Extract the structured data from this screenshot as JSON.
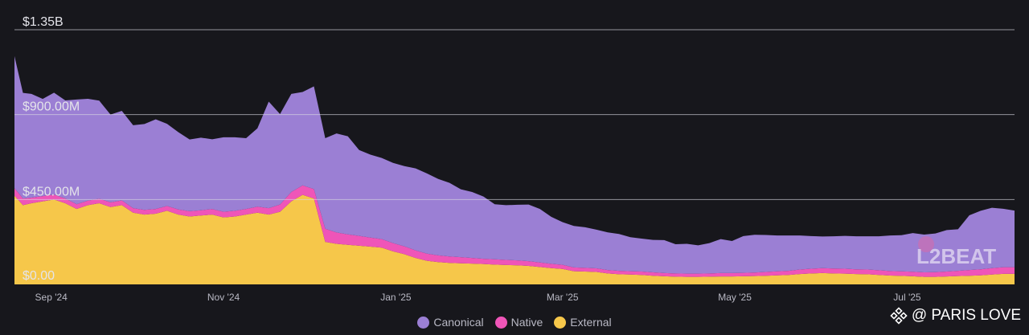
{
  "chart_data": {
    "type": "area",
    "stacked": true,
    "y_ticks": [
      "$1.35B",
      "$900.00M",
      "$450.00M",
      "$0.00"
    ],
    "y_tick_values": [
      1350,
      900,
      450,
      0
    ],
    "y_unit": "USD millions",
    "ylim": [
      0,
      1350
    ],
    "x_ticks": [
      "Sep '24",
      "Nov '24",
      "Jan '25",
      "Mar '25",
      "May '25",
      "Jul '25"
    ],
    "x_tick_days": [
      13,
      74,
      135,
      194,
      255,
      316
    ],
    "x_range_days": [
      0,
      354
    ],
    "grid": true,
    "legend_position": "bottom-center",
    "series": [
      {
        "name": "External",
        "color": "#f6c74a",
        "x": [
          0,
          3,
          6,
          10,
          14,
          18,
          22,
          26,
          30,
          34,
          38,
          42,
          46,
          50,
          54,
          58,
          62,
          66,
          70,
          74,
          78,
          82,
          86,
          90,
          94,
          98,
          102,
          106,
          110,
          114,
          118,
          122,
          126,
          130,
          134,
          138,
          142,
          146,
          150,
          154,
          158,
          162,
          166,
          170,
          174,
          178,
          182,
          186,
          190,
          194,
          198,
          202,
          206,
          210,
          214,
          218,
          222,
          226,
          230,
          234,
          238,
          242,
          246,
          250,
          254,
          258,
          262,
          266,
          270,
          274,
          278,
          282,
          286,
          290,
          294,
          298,
          302,
          306,
          310,
          314,
          318,
          322,
          326,
          330,
          334,
          338,
          342,
          346,
          350,
          354
        ],
        "values": [
          470,
          420,
          430,
          440,
          450,
          430,
          400,
          420,
          430,
          410,
          420,
          380,
          370,
          375,
          390,
          370,
          360,
          365,
          370,
          355,
          360,
          370,
          380,
          370,
          385,
          440,
          475,
          455,
          225,
          215,
          210,
          205,
          200,
          195,
          175,
          160,
          140,
          125,
          118,
          114,
          112,
          110,
          108,
          105,
          103,
          101,
          98,
          92,
          86,
          82,
          70,
          68,
          66,
          58,
          54,
          52,
          50,
          46,
          43,
          41,
          40,
          40,
          41,
          42,
          42,
          43,
          44,
          46,
          48,
          50,
          55,
          58,
          60,
          58,
          57,
          55,
          54,
          50,
          47,
          45,
          43,
          40,
          40,
          42,
          44,
          46,
          48,
          52,
          56,
          56
        ]
      },
      {
        "name": "Native",
        "color": "#ef55b8",
        "x": [
          0,
          3,
          6,
          10,
          14,
          18,
          22,
          26,
          30,
          34,
          38,
          42,
          46,
          50,
          54,
          58,
          62,
          66,
          70,
          74,
          78,
          82,
          86,
          90,
          94,
          98,
          102,
          106,
          110,
          114,
          118,
          122,
          126,
          130,
          134,
          138,
          142,
          146,
          150,
          154,
          158,
          162,
          166,
          170,
          174,
          178,
          182,
          186,
          190,
          194,
          198,
          202,
          206,
          210,
          214,
          218,
          222,
          226,
          230,
          234,
          238,
          242,
          246,
          250,
          254,
          258,
          262,
          266,
          270,
          274,
          278,
          282,
          286,
          290,
          294,
          298,
          302,
          306,
          310,
          314,
          318,
          322,
          326,
          330,
          334,
          338,
          342,
          346,
          350,
          354
        ],
        "values": [
          40,
          35,
          30,
          28,
          26,
          25,
          25,
          24,
          24,
          25,
          25,
          24,
          25,
          25,
          26,
          27,
          28,
          28,
          29,
          30,
          30,
          30,
          32,
          34,
          38,
          50,
          50,
          50,
          70,
          60,
          55,
          52,
          48,
          45,
          44,
          42,
          40,
          38,
          36,
          34,
          32,
          30,
          28,
          28,
          27,
          26,
          25,
          24,
          23,
          22,
          20,
          20,
          19,
          18,
          18,
          18,
          18,
          18,
          17,
          17,
          17,
          17,
          17,
          18,
          18,
          18,
          19,
          20,
          21,
          22,
          24,
          25,
          26,
          26,
          26,
          25,
          25,
          25,
          24,
          24,
          24,
          24,
          25,
          26,
          28,
          30,
          32,
          34,
          35,
          35
        ]
      },
      {
        "name": "Canonical",
        "color": "#9b7fd4",
        "x": [
          0,
          3,
          6,
          10,
          14,
          18,
          22,
          26,
          30,
          34,
          38,
          42,
          46,
          50,
          54,
          58,
          62,
          66,
          70,
          74,
          78,
          82,
          86,
          90,
          94,
          98,
          102,
          106,
          110,
          114,
          118,
          122,
          126,
          130,
          134,
          138,
          142,
          146,
          150,
          154,
          158,
          162,
          166,
          170,
          174,
          178,
          182,
          186,
          190,
          194,
          198,
          202,
          206,
          210,
          214,
          218,
          222,
          226,
          230,
          234,
          238,
          242,
          246,
          250,
          254,
          258,
          262,
          266,
          270,
          274,
          278,
          282,
          286,
          290,
          294,
          298,
          302,
          306,
          310,
          314,
          318,
          322,
          326,
          330,
          334,
          338,
          342,
          346,
          350,
          354
        ],
        "values": [
          700,
          560,
          550,
          515,
          540,
          520,
          555,
          540,
          520,
          465,
          475,
          440,
          455,
          475,
          435,
          410,
          380,
          385,
          370,
          395,
          390,
          375,
          415,
          565,
          480,
          520,
          495,
          545,
          480,
          525,
          520,
          455,
          440,
          430,
          425,
          425,
          435,
          425,
          405,
          390,
          360,
          350,
          330,
          292,
          290,
          295,
          300,
          284,
          249,
          226,
          220,
          215,
          205,
          200,
          195,
          180,
          175,
          172,
          175,
          155,
          158,
          150,
          161,
          180,
          170,
          195,
          200,
          196,
          190,
          187,
          180,
          173,
          168,
          171,
          174,
          175,
          176,
          180,
          188,
          192,
          205,
          200,
          205,
          220,
          220,
          290,
          310,
          320,
          310,
          300
        ]
      }
    ]
  },
  "legend": {
    "items": [
      {
        "label": "Canonical",
        "color": "#9b7fd4"
      },
      {
        "label": "Native",
        "color": "#ef55b8"
      },
      {
        "label": "External",
        "color": "#f6c74a"
      }
    ]
  },
  "watermark": {
    "text": "@ PARIS LOVE",
    "icon": "binance-diamond-icon"
  },
  "logo": {
    "text": "L2BEAT"
  }
}
